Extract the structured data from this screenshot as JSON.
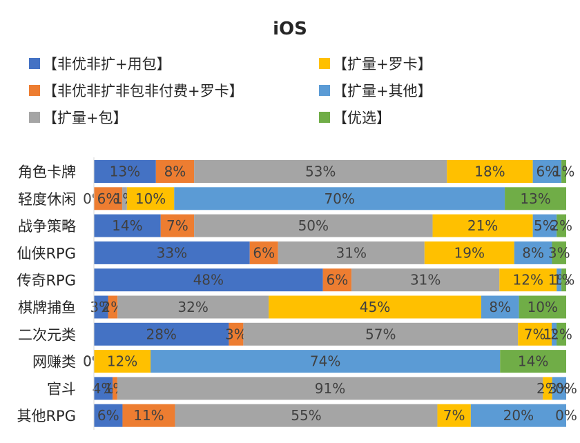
{
  "chart_data": {
    "type": "bar",
    "orientation": "horizontal",
    "stacked": "percent",
    "title": "iOS",
    "categories": [
      "角色卡牌",
      "轻度休闲",
      "战争策略",
      "仙侠RPG",
      "传奇RPG",
      "棋牌捕鱼",
      "二次元类",
      "网赚类",
      "官斗",
      "其他RPG"
    ],
    "series": [
      {
        "name": "【非优非扩+用包】",
        "color": "#4472C4",
        "values": [
          13,
          0,
          14,
          33,
          48,
          3,
          28,
          0,
          4,
          6
        ]
      },
      {
        "name": "【非优非扩非包非付费+罗卡】",
        "color": "#ED7D31",
        "values": [
          8,
          6,
          7,
          6,
          6,
          2,
          3,
          0,
          1,
          11
        ]
      },
      {
        "name": "【扩量+包】",
        "color": "#A5A5A5",
        "values": [
          53,
          1,
          50,
          31,
          31,
          32,
          57,
          0,
          91,
          55
        ]
      },
      {
        "name": "【扩量+罗卡】",
        "color": "#FFC000",
        "values": [
          18,
          10,
          21,
          19,
          12,
          45,
          7,
          12,
          2,
          7
        ]
      },
      {
        "name": "【扩量+其他】",
        "color": "#5B9BD5",
        "values": [
          6,
          70,
          5,
          8,
          1,
          8,
          1,
          74,
          3,
          20
        ]
      },
      {
        "name": "【优选】",
        "color": "#70AD47",
        "values": [
          1,
          13,
          2,
          3,
          1,
          10,
          2,
          14,
          0,
          0
        ]
      }
    ],
    "xlim": [
      0,
      100
    ],
    "grid": false,
    "legend_position": "top"
  }
}
